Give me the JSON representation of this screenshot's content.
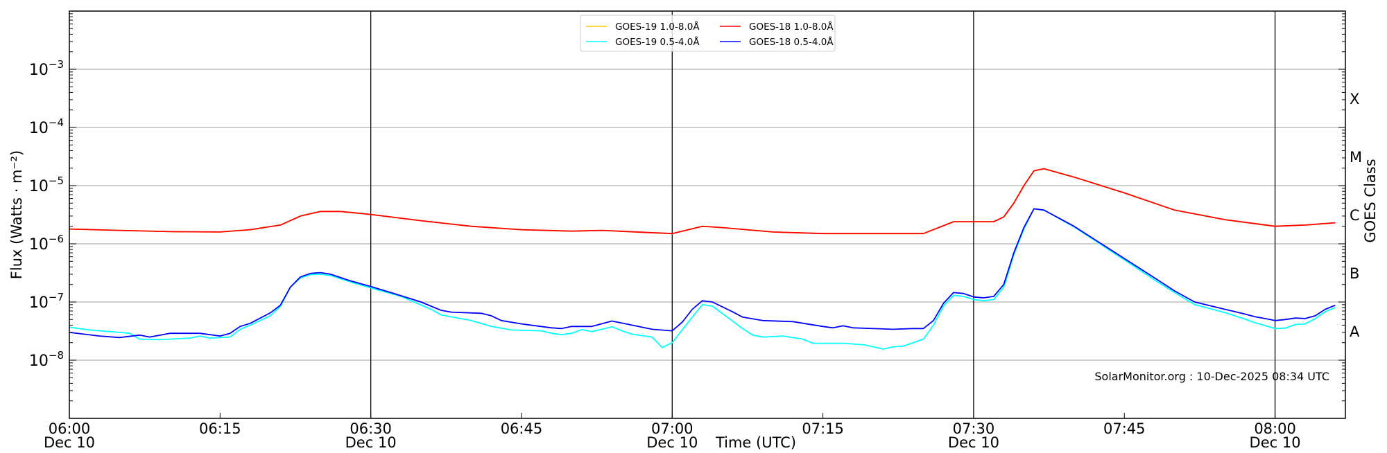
{
  "chart_data": {
    "type": "line",
    "title": "",
    "xlabel": "Time (UTC)",
    "ylabel": "Flux (Watts · m⁻²)",
    "y2label": "GOES Class",
    "yscale": "log",
    "ylim": [
      1e-09,
      0.01
    ],
    "xlim_minutes_after_0600": [
      0,
      127
    ],
    "grid": "horizontal at decades",
    "legend_placement": "top-center",
    "x_ticks": [
      {
        "minute": 0,
        "label": "06:00",
        "date": "Dec 10"
      },
      {
        "minute": 15,
        "label": "06:15",
        "date": ""
      },
      {
        "minute": 30,
        "label": "06:30",
        "date": "Dec 10"
      },
      {
        "minute": 45,
        "label": "06:45",
        "date": ""
      },
      {
        "minute": 60,
        "label": "07:00",
        "date": "Dec 10"
      },
      {
        "minute": 75,
        "label": "07:15",
        "date": ""
      },
      {
        "minute": 90,
        "label": "07:30",
        "date": "Dec 10"
      },
      {
        "minute": 105,
        "label": "07:45",
        "date": ""
      },
      {
        "minute": 120,
        "label": "08:00",
        "date": "Dec 10"
      }
    ],
    "y_ticks": [
      {
        "exp": -8,
        "base": "10",
        "sup": "−8"
      },
      {
        "exp": -7,
        "base": "10",
        "sup": "−7"
      },
      {
        "exp": -6,
        "base": "10",
        "sup": "−6"
      },
      {
        "exp": -5,
        "base": "10",
        "sup": "−5"
      },
      {
        "exp": -4,
        "base": "10",
        "sup": "−4"
      },
      {
        "exp": -3,
        "base": "10",
        "sup": "−3"
      }
    ],
    "vertical_lines_minutes": [
      30,
      60,
      90,
      120
    ],
    "goes_classes": [
      {
        "label": "X",
        "exp": -3.5
      },
      {
        "label": "M",
        "exp": -4.5
      },
      {
        "label": "C",
        "exp": -5.5
      },
      {
        "label": "B",
        "exp": -6.5
      },
      {
        "label": "A",
        "exp": -7.5
      }
    ],
    "series": [
      {
        "name": "GOES-19 1.0-8.0Å",
        "color": "#ffc800",
        "points": [
          [
            0,
            1.8e-06
          ],
          [
            5,
            1.7e-06
          ],
          [
            10,
            1.62e-06
          ],
          [
            15,
            1.6e-06
          ],
          [
            18,
            1.75e-06
          ],
          [
            21,
            2.1e-06
          ],
          [
            23,
            3e-06
          ],
          [
            25,
            3.6e-06
          ],
          [
            27,
            3.6e-06
          ],
          [
            30,
            3.2e-06
          ],
          [
            35,
            2.5e-06
          ],
          [
            40,
            2e-06
          ],
          [
            45,
            1.75e-06
          ],
          [
            50,
            1.65e-06
          ],
          [
            53,
            1.7e-06
          ],
          [
            57,
            1.58e-06
          ],
          [
            60,
            1.5e-06
          ],
          [
            63,
            2e-06
          ],
          [
            65,
            1.9e-06
          ],
          [
            70,
            1.6e-06
          ],
          [
            75,
            1.5e-06
          ],
          [
            85,
            1.5e-06
          ],
          [
            88,
            2.4e-06
          ],
          [
            90,
            2.4e-06
          ],
          [
            92,
            2.4e-06
          ],
          [
            93,
            2.9e-06
          ],
          [
            94,
            5e-06
          ],
          [
            95,
            1e-05
          ],
          [
            96,
            1.8e-05
          ],
          [
            97,
            1.95e-05
          ],
          [
            100,
            1.4e-05
          ],
          [
            105,
            7.5e-06
          ],
          [
            110,
            3.8e-06
          ],
          [
            115,
            2.6e-06
          ],
          [
            120,
            2e-06
          ],
          [
            123,
            2.1e-06
          ],
          [
            126,
            2.3e-06
          ]
        ]
      },
      {
        "name": "GOES-18 1.0-8.0Å",
        "color": "#ff0000",
        "points": [
          [
            0,
            1.8e-06
          ],
          [
            5,
            1.7e-06
          ],
          [
            10,
            1.62e-06
          ],
          [
            15,
            1.6e-06
          ],
          [
            18,
            1.75e-06
          ],
          [
            21,
            2.1e-06
          ],
          [
            23,
            3e-06
          ],
          [
            25,
            3.6e-06
          ],
          [
            27,
            3.6e-06
          ],
          [
            30,
            3.2e-06
          ],
          [
            35,
            2.5e-06
          ],
          [
            40,
            2e-06
          ],
          [
            45,
            1.75e-06
          ],
          [
            50,
            1.65e-06
          ],
          [
            53,
            1.7e-06
          ],
          [
            57,
            1.58e-06
          ],
          [
            60,
            1.5e-06
          ],
          [
            63,
            2e-06
          ],
          [
            65,
            1.9e-06
          ],
          [
            70,
            1.6e-06
          ],
          [
            75,
            1.5e-06
          ],
          [
            85,
            1.5e-06
          ],
          [
            88,
            2.4e-06
          ],
          [
            90,
            2.4e-06
          ],
          [
            92,
            2.4e-06
          ],
          [
            93,
            2.9e-06
          ],
          [
            94,
            5e-06
          ],
          [
            95,
            1e-05
          ],
          [
            96,
            1.8e-05
          ],
          [
            97,
            1.95e-05
          ],
          [
            100,
            1.4e-05
          ],
          [
            105,
            7.5e-06
          ],
          [
            110,
            3.8e-06
          ],
          [
            115,
            2.6e-06
          ],
          [
            120,
            2e-06
          ],
          [
            123,
            2.1e-06
          ],
          [
            126,
            2.3e-06
          ]
        ]
      },
      {
        "name": "GOES-19 0.5-4.0Å",
        "color": "#00ffff",
        "points": [
          [
            0,
            3.7e-08
          ],
          [
            2,
            3.3e-08
          ],
          [
            5,
            3e-08
          ],
          [
            6,
            2.9e-08
          ],
          [
            7,
            2.3e-08
          ],
          [
            9,
            2.25e-08
          ],
          [
            12,
            2.4e-08
          ],
          [
            13,
            2.6e-08
          ],
          [
            14,
            2.4e-08
          ],
          [
            16,
            2.5e-08
          ],
          [
            17,
            3.4e-08
          ],
          [
            18,
            4e-08
          ],
          [
            20,
            5.8e-08
          ],
          [
            21,
            8.4e-08
          ],
          [
            22,
            1.8e-07
          ],
          [
            23,
            2.6e-07
          ],
          [
            24,
            2.95e-07
          ],
          [
            25,
            3e-07
          ],
          [
            26,
            2.85e-07
          ],
          [
            28,
            2.2e-07
          ],
          [
            30,
            1.75e-07
          ],
          [
            33,
            1.25e-07
          ],
          [
            36,
            7.5e-08
          ],
          [
            37,
            6e-08
          ],
          [
            40,
            4.8e-08
          ],
          [
            42,
            3.8e-08
          ],
          [
            44,
            3.3e-08
          ],
          [
            47,
            3.2e-08
          ],
          [
            48,
            2.9e-08
          ],
          [
            49,
            2.75e-08
          ],
          [
            50,
            2.9e-08
          ],
          [
            51,
            3.35e-08
          ],
          [
            52,
            3.1e-08
          ],
          [
            53,
            3.4e-08
          ],
          [
            54,
            3.75e-08
          ],
          [
            55,
            3.2e-08
          ],
          [
            56,
            2.8e-08
          ],
          [
            58,
            2.5e-08
          ],
          [
            59,
            1.65e-08
          ],
          [
            60,
            2e-08
          ],
          [
            62,
            5.5e-08
          ],
          [
            63,
            9e-08
          ],
          [
            64,
            8.5e-08
          ],
          [
            67,
            3.5e-08
          ],
          [
            68,
            2.7e-08
          ],
          [
            69,
            2.5e-08
          ],
          [
            71,
            2.6e-08
          ],
          [
            73,
            2.3e-08
          ],
          [
            74,
            1.95e-08
          ],
          [
            77,
            1.95e-08
          ],
          [
            79,
            1.85e-08
          ],
          [
            80,
            1.7e-08
          ],
          [
            81,
            1.55e-08
          ],
          [
            82,
            1.7e-08
          ],
          [
            83,
            1.75e-08
          ],
          [
            85,
            2.3e-08
          ],
          [
            86,
            4e-08
          ],
          [
            87,
            8.5e-08
          ],
          [
            88,
            1.3e-07
          ],
          [
            89,
            1.25e-07
          ],
          [
            90,
            1.1e-07
          ],
          [
            91,
            1.05e-07
          ],
          [
            92,
            1.1e-07
          ],
          [
            93,
            1.8e-07
          ],
          [
            94,
            6.5e-07
          ],
          [
            95,
            1.8e-06
          ],
          [
            96,
            4e-06
          ],
          [
            97,
            3.8e-06
          ],
          [
            100,
            1.95e-06
          ],
          [
            105,
            5.3e-07
          ],
          [
            108,
            2.4e-07
          ],
          [
            110,
            1.45e-07
          ],
          [
            112,
            9e-08
          ],
          [
            115,
            6.6e-08
          ],
          [
            117,
            5.1e-08
          ],
          [
            118,
            4.4e-08
          ],
          [
            120,
            3.5e-08
          ],
          [
            121,
            3.55e-08
          ],
          [
            122,
            4.1e-08
          ],
          [
            123,
            4.2e-08
          ],
          [
            124,
            5.2e-08
          ],
          [
            125,
            6.8e-08
          ],
          [
            126,
            8e-08
          ]
        ]
      },
      {
        "name": "GOES-18 0.5-4.0Å",
        "color": "#0000ff",
        "points": [
          [
            0,
            3e-08
          ],
          [
            3,
            2.6e-08
          ],
          [
            5,
            2.45e-08
          ],
          [
            7,
            2.7e-08
          ],
          [
            8,
            2.5e-08
          ],
          [
            10,
            2.9e-08
          ],
          [
            13,
            2.9e-08
          ],
          [
            15,
            2.6e-08
          ],
          [
            16,
            2.9e-08
          ],
          [
            17,
            3.8e-08
          ],
          [
            18,
            4.3e-08
          ],
          [
            20,
            6.5e-08
          ],
          [
            21,
            8.8e-08
          ],
          [
            22,
            1.8e-07
          ],
          [
            23,
            2.7e-07
          ],
          [
            24,
            3.1e-07
          ],
          [
            25,
            3.2e-07
          ],
          [
            26,
            3e-07
          ],
          [
            28,
            2.3e-07
          ],
          [
            30,
            1.85e-07
          ],
          [
            32,
            1.45e-07
          ],
          [
            35,
            1e-07
          ],
          [
            37,
            7.2e-08
          ],
          [
            38,
            6.7e-08
          ],
          [
            41,
            6.4e-08
          ],
          [
            42,
            5.8e-08
          ],
          [
            43,
            4.8e-08
          ],
          [
            45,
            4.2e-08
          ],
          [
            48,
            3.6e-08
          ],
          [
            49,
            3.5e-08
          ],
          [
            50,
            3.8e-08
          ],
          [
            52,
            3.8e-08
          ],
          [
            54,
            4.7e-08
          ],
          [
            56,
            4e-08
          ],
          [
            58,
            3.4e-08
          ],
          [
            60,
            3.2e-08
          ],
          [
            61,
            4.5e-08
          ],
          [
            62,
            7.5e-08
          ],
          [
            63,
            1.05e-07
          ],
          [
            64,
            1e-07
          ],
          [
            66,
            6.8e-08
          ],
          [
            67,
            5.5e-08
          ],
          [
            69,
            4.8e-08
          ],
          [
            72,
            4.6e-08
          ],
          [
            75,
            3.8e-08
          ],
          [
            76,
            3.6e-08
          ],
          [
            77,
            3.9e-08
          ],
          [
            78,
            3.6e-08
          ],
          [
            82,
            3.4e-08
          ],
          [
            84,
            3.5e-08
          ],
          [
            85,
            3.5e-08
          ],
          [
            86,
            4.8e-08
          ],
          [
            87,
            9.5e-08
          ],
          [
            88,
            1.45e-07
          ],
          [
            89,
            1.4e-07
          ],
          [
            90,
            1.22e-07
          ],
          [
            91,
            1.18e-07
          ],
          [
            92,
            1.25e-07
          ],
          [
            93,
            2e-07
          ],
          [
            94,
            7e-07
          ],
          [
            95,
            1.9e-06
          ],
          [
            96,
            4e-06
          ],
          [
            97,
            3.8e-06
          ],
          [
            100,
            2e-06
          ],
          [
            105,
            5.6e-07
          ],
          [
            108,
            2.6e-07
          ],
          [
            110,
            1.55e-07
          ],
          [
            112,
            1e-07
          ],
          [
            115,
            7.5e-08
          ],
          [
            117,
            6.2e-08
          ],
          [
            118,
            5.6e-08
          ],
          [
            119,
            5.2e-08
          ],
          [
            120,
            4.8e-08
          ],
          [
            121,
            5e-08
          ],
          [
            122,
            5.3e-08
          ],
          [
            123,
            5.2e-08
          ],
          [
            124,
            5.8e-08
          ],
          [
            125,
            7.5e-08
          ],
          [
            126,
            8.8e-08
          ]
        ]
      }
    ],
    "legend_order": [
      0,
      2,
      1,
      3
    ],
    "annotation": "SolarMonitor.org : 10-Dec-2025 08:34 UTC"
  }
}
